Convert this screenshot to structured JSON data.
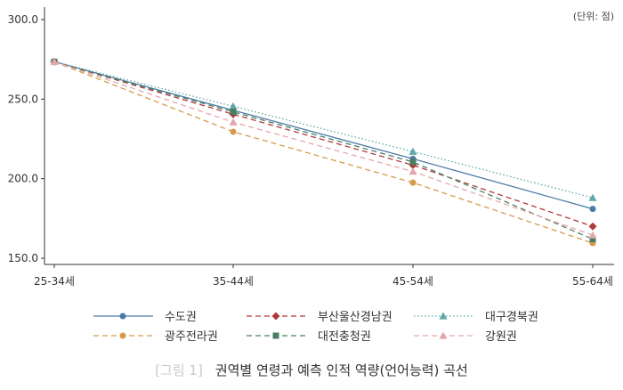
{
  "chart_data": {
    "type": "line",
    "unit_note": "(단위: 점)",
    "categories": [
      "25-34세",
      "35-44세",
      "45-54세",
      "55-64세"
    ],
    "ylim": [
      150,
      300
    ],
    "yticks": [
      "150.0",
      "200.0",
      "250.0",
      "300.0"
    ],
    "grid": false,
    "legend_position": "bottom",
    "series": [
      {
        "name": "수도권",
        "values": [
          273.5,
          243.0,
          212.5,
          181.0
        ],
        "color": "#4a7ba6",
        "dash": "",
        "marker": "circle"
      },
      {
        "name": "부산울산경남권",
        "values": [
          273.5,
          240.5,
          208.5,
          170.0
        ],
        "color": "#b0393b",
        "dash": "6,4",
        "marker": "diamond"
      },
      {
        "name": "대구경북권",
        "values": [
          273.5,
          245.5,
          217.0,
          188.0
        ],
        "color": "#5fa7a9",
        "dash": "1.5,2.5",
        "marker": "triangle"
      },
      {
        "name": "광주전라권",
        "values": [
          273.5,
          229.5,
          197.5,
          159.5
        ],
        "color": "#d59a4a",
        "dash": "6,4",
        "marker": "circle"
      },
      {
        "name": "대전충청권",
        "values": [
          273.5,
          242.0,
          210.5,
          162.0
        ],
        "color": "#4b7d63",
        "dash": "6,4",
        "marker": "square"
      },
      {
        "name": "강원권",
        "values": [
          273.5,
          235.5,
          204.5,
          164.5
        ],
        "color": "#e3a7ad",
        "dash": "6,4",
        "marker": "triangle"
      }
    ]
  },
  "caption": {
    "figure_label": "[그림 1]",
    "title": "권역별 연령과 예측 인적 역량(언어능력) 곡선"
  }
}
